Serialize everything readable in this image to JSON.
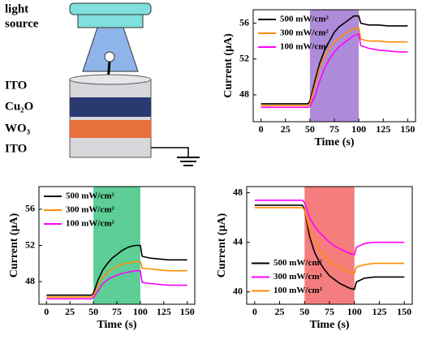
{
  "diagram": {
    "light_source": [
      "light",
      "source"
    ],
    "layers": [
      "ITO",
      "Cu₂O",
      "WO₃",
      "ITO"
    ]
  },
  "chart_data": [
    {
      "type": "line",
      "xlabel": "Time (s)",
      "ylabel": "Current (μA)",
      "xlim": [
        -8,
        158
      ],
      "ylim": [
        45,
        57.5
      ],
      "xticks": [
        0,
        25,
        50,
        75,
        100,
        125,
        150
      ],
      "yticks": [
        48,
        52,
        56
      ],
      "legend": "upper left",
      "highlight": {
        "x": [
          50,
          100
        ],
        "color": "#9b6fcf"
      },
      "x": [
        0,
        10,
        20,
        30,
        40,
        48,
        50,
        55,
        60,
        65,
        70,
        75,
        80,
        85,
        90,
        95,
        100,
        102,
        110,
        120,
        130,
        140,
        150
      ],
      "series": [
        {
          "name": "500 mW/cm²",
          "color": "#000000",
          "values": [
            47,
            47,
            47,
            47,
            47,
            47,
            47.3,
            49.5,
            51.5,
            53,
            54,
            55,
            55.6,
            56,
            56.4,
            56.8,
            56.8,
            56,
            55.8,
            55.8,
            55.7,
            55.7,
            55.7
          ]
        },
        {
          "name": "300 mW/cm²",
          "color": "#ff8c00",
          "values": [
            46.8,
            46.8,
            46.8,
            46.8,
            46.8,
            46.8,
            47,
            49,
            51,
            52.3,
            53.2,
            53.9,
            54.3,
            54.8,
            55.1,
            55.4,
            55.5,
            54.2,
            54,
            54,
            53.9,
            53.9,
            53.9
          ]
        },
        {
          "name": "100 mW/cm²",
          "color": "#ff00ff",
          "values": [
            46.6,
            46.6,
            46.6,
            46.6,
            46.6,
            46.6,
            46.7,
            47.8,
            49.5,
            51,
            52,
            52.8,
            53.4,
            53.8,
            54.2,
            54.6,
            54.8,
            53.5,
            53.2,
            53,
            52.9,
            52.8,
            52.8
          ]
        }
      ]
    },
    {
      "type": "line",
      "xlabel": "Time (s)",
      "ylabel": "Current (μA)",
      "xlim": [
        -8,
        158
      ],
      "ylim": [
        45.5,
        58.5
      ],
      "xticks": [
        0,
        25,
        50,
        75,
        100,
        125,
        150
      ],
      "yticks": [
        48,
        52,
        56
      ],
      "legend": "upper left",
      "highlight": {
        "x": [
          50,
          100
        ],
        "color": "#33c27c"
      },
      "x": [
        0,
        10,
        20,
        30,
        40,
        48,
        50,
        55,
        60,
        65,
        70,
        75,
        80,
        85,
        90,
        95,
        100,
        102,
        110,
        120,
        130,
        140,
        150
      ],
      "series": [
        {
          "name": "500 mW/cm²",
          "color": "#000000",
          "values": [
            46.5,
            46.5,
            46.5,
            46.5,
            46.5,
            46.5,
            46.7,
            48.2,
            49.3,
            50,
            50.6,
            51,
            51.4,
            51.7,
            51.9,
            52,
            52,
            50.8,
            50.6,
            50.5,
            50.4,
            50.4,
            50.4
          ]
        },
        {
          "name": "300 mW/cm²",
          "color": "#ff8c00",
          "values": [
            46.3,
            46.3,
            46.3,
            46.3,
            46.3,
            46.3,
            46.4,
            47.6,
            48.5,
            49,
            49.4,
            49.7,
            49.9,
            50,
            50.1,
            50.2,
            50.2,
            49.5,
            49.4,
            49.3,
            49.2,
            49.2,
            49.2
          ]
        },
        {
          "name": "100 mW/cm²",
          "color": "#ff00ff",
          "values": [
            46.1,
            46.1,
            46.1,
            46.1,
            46.1,
            46.1,
            46.2,
            47,
            47.8,
            48.2,
            48.5,
            48.7,
            48.9,
            49,
            49.1,
            49.2,
            49.2,
            47.9,
            47.8,
            47.7,
            47.6,
            47.6,
            47.6
          ]
        }
      ]
    },
    {
      "type": "line",
      "xlabel": "Time (s)",
      "ylabel": "Current (μA)",
      "xlim": [
        -8,
        158
      ],
      "ylim": [
        39,
        48.5
      ],
      "xticks": [
        0,
        25,
        50,
        75,
        100,
        125,
        150
      ],
      "yticks": [
        40,
        44,
        48
      ],
      "legend": "lower left",
      "highlight": {
        "x": [
          50,
          100
        ],
        "color": "#f25c5c"
      },
      "x": [
        0,
        10,
        20,
        30,
        40,
        48,
        50,
        55,
        60,
        65,
        70,
        75,
        80,
        85,
        90,
        95,
        100,
        102,
        110,
        120,
        130,
        140,
        150
      ],
      "series": [
        {
          "name": "500 mW/cm²",
          "color": "#000000",
          "values": [
            47,
            47,
            47,
            47,
            47,
            47,
            46.6,
            44.5,
            43.2,
            42.4,
            41.8,
            41.3,
            41,
            40.7,
            40.5,
            40.3,
            40.2,
            40.8,
            41.1,
            41.2,
            41.2,
            41.2,
            41.2
          ]
        },
        {
          "name": "300 mW/cm²",
          "color": "#ff00ff",
          "values": [
            47.4,
            47.4,
            47.4,
            47.4,
            47.4,
            47.4,
            47.2,
            46,
            45.3,
            44.8,
            44.4,
            44,
            43.7,
            43.5,
            43.3,
            43.1,
            43,
            43.6,
            43.9,
            44,
            44,
            44,
            44
          ]
        },
        {
          "name": "100 mW/cm²",
          "color": "#ff8c00",
          "values": [
            46.8,
            46.8,
            46.8,
            46.8,
            46.8,
            46.8,
            46.6,
            45,
            44.1,
            43.4,
            42.9,
            42.5,
            42.2,
            42,
            41.8,
            41.6,
            41.5,
            42,
            42.2,
            42.3,
            42.3,
            42.3,
            42.3
          ]
        }
      ]
    }
  ]
}
